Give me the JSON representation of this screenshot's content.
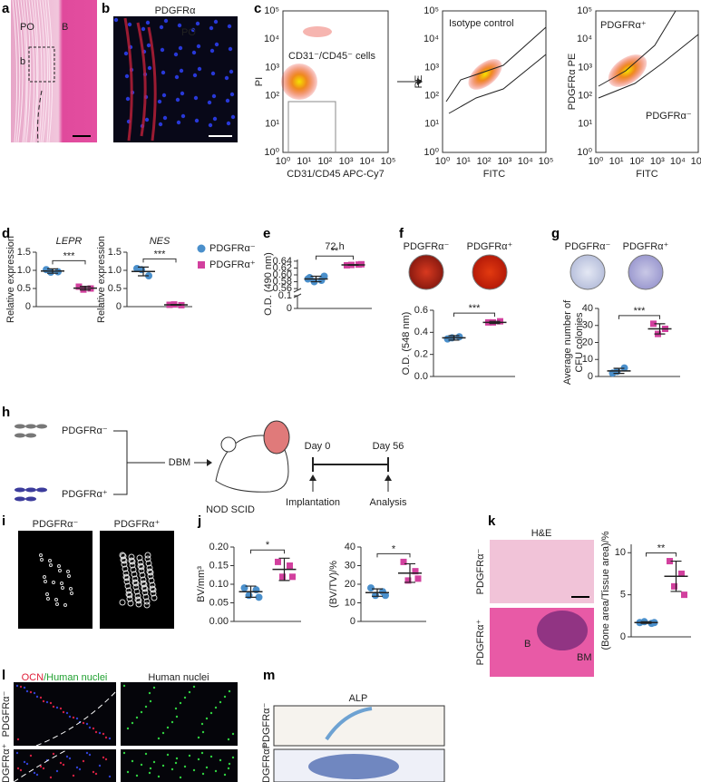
{
  "panel_letters": [
    "a",
    "b",
    "c",
    "d",
    "e",
    "f",
    "g",
    "h",
    "i",
    "j",
    "k",
    "l",
    "m"
  ],
  "groups": [
    "PDGFRα⁻",
    "PDGFRα⁺"
  ],
  "a": {
    "labels": [
      "PO",
      "B",
      "b"
    ]
  },
  "b": {
    "stain": "PDGFRα",
    "label": "PO"
  },
  "c": {
    "ticks": [
      "10⁰",
      "10¹",
      "10²",
      "10³",
      "10⁴",
      "10⁵"
    ],
    "plots": [
      {
        "ylabel": "PI",
        "xlabel": "CD31/CD45 APC-Cy7",
        "gate_labels": [
          "CD31⁻/CD45⁻ cells"
        ]
      },
      {
        "ylabel": "PE",
        "xlabel": "FITC",
        "gate_labels": [
          "Isotype control"
        ]
      },
      {
        "ylabel": "PDGFRα PE",
        "xlabel": "FITC",
        "gate_labels": [
          "PDGFRα⁺",
          "PDGFRα⁻"
        ]
      }
    ]
  },
  "h": {
    "steps": [
      "DBM",
      "NOD SCID",
      "Day 0",
      "Day 56",
      "Implantation",
      "Analysis"
    ]
  },
  "k": {
    "stain": "H&E",
    "labels": [
      "B",
      "BM"
    ]
  },
  "l": {
    "titles": [
      "OCN",
      "/Human nuclei",
      "Human nuclei"
    ]
  },
  "m": {
    "stain": "ALP"
  },
  "chart_data": [
    {
      "type": "dot",
      "title": "LEPR",
      "ylabel": "Relative expression",
      "ylim": [
        0,
        1.5
      ],
      "yticks": [
        0,
        0.5,
        {
          "value": 1,
          "label": "1.0"
        },
        1.5
      ],
      "annotation": "***",
      "series": [
        {
          "color": "#4a8fcb",
          "marker": "circle",
          "values": [
            1.02,
            0.96,
            0.95
          ],
          "mean": 0.98,
          "sd": 0.06
        },
        {
          "color": "#d2409e",
          "marker": "square",
          "values": [
            0.55,
            0.5,
            0.47
          ],
          "mean": 0.51,
          "sd": 0.05
        }
      ]
    },
    {
      "type": "dot",
      "title": "NES",
      "ylabel": "Relative expression",
      "ylim": [
        0,
        1.5
      ],
      "yticks": [
        0,
        0.5,
        {
          "value": 1,
          "label": "1.0"
        },
        1.5
      ],
      "annotation": "***",
      "legend": "right",
      "series": [
        {
          "name": "PDGFRα⁻",
          "color": "#4a8fcb",
          "marker": "circle",
          "values": [
            1.05,
            0.85,
            1.02
          ],
          "mean": 0.97,
          "sd": 0.12
        },
        {
          "name": "PDGFRα⁺",
          "color": "#d2409e",
          "marker": "square",
          "values": [
            0.05,
            0.04,
            0.06
          ],
          "mean": 0.05,
          "sd": 0.01
        }
      ]
    },
    {
      "type": "dot",
      "title": "72 h",
      "ylabel": "O.D. (490 nm)",
      "ylim": [
        0.555,
        0.645
      ],
      "yticks": [
        0.56,
        0.58,
        {
          "value": 0.6,
          "label": "0.60"
        },
        0.62,
        0.64
      ],
      "lower_ylim": [
        0,
        0.1
      ],
      "lower_yticks": [
        0,
        0.1
      ],
      "annotation": "**",
      "series": [
        {
          "color": "#4a8fcb",
          "marker": "circle",
          "values": [
            0.592,
            0.584,
            0.58,
            0.596,
            0.588
          ],
          "mean": 0.588,
          "sd": 0.008
        },
        {
          "color": "#d2409e",
          "marker": "square",
          "values": [
            0.628,
            0.63,
            0.629,
            0.631
          ],
          "mean": 0.629,
          "sd": 0.001
        }
      ]
    },
    {
      "type": "dot",
      "ylabel": "O.D. (548 nm)",
      "ylim": [
        0,
        0.6
      ],
      "yticks": [
        {
          "value": 0,
          "label": "0.0"
        },
        0.2,
        0.4,
        0.6
      ],
      "annotation": "***",
      "series": [
        {
          "color": "#4a8fcb",
          "marker": "circle",
          "values": [
            0.34,
            0.36,
            0.35
          ],
          "mean": 0.35,
          "sd": 0.02
        },
        {
          "color": "#d2409e",
          "marker": "square",
          "values": [
            0.49,
            0.5,
            0.49
          ],
          "mean": 0.49,
          "sd": 0.01
        }
      ]
    },
    {
      "type": "dot",
      "ylabel": [
        "Average number of",
        "CFU colonies"
      ],
      "ylim": [
        0,
        40
      ],
      "yticks": [
        0,
        10,
        20,
        30,
        40
      ],
      "annotation": "***",
      "series": [
        {
          "color": "#4a8fcb",
          "marker": "circle",
          "values": [
            2,
            5,
            3
          ],
          "mean": 3.3,
          "sd": 1.5
        },
        {
          "color": "#d2409e",
          "marker": "square",
          "values": [
            31,
            28,
            25
          ],
          "mean": 28,
          "sd": 3
        }
      ]
    },
    {
      "type": "dot",
      "ylabel": "BV/mm³",
      "ylim": [
        0,
        0.2
      ],
      "yticks": [
        {
          "value": 0,
          "label": "0.00"
        },
        0.05,
        {
          "value": 0.1,
          "label": "0.10"
        },
        0.15,
        {
          "value": 0.2,
          "label": "0.20"
        }
      ],
      "annotation": "*",
      "series": [
        {
          "color": "#4a8fcb",
          "marker": "circle",
          "values": [
            0.09,
            0.085,
            0.07,
            0.065
          ],
          "mean": 0.08,
          "sd": 0.015
        },
        {
          "color": "#d2409e",
          "marker": "square",
          "values": [
            0.16,
            0.15,
            0.12,
            0.12
          ],
          "mean": 0.14,
          "sd": 0.03
        }
      ]
    },
    {
      "type": "dot",
      "ylabel": "(BV/TV)/%",
      "ylim": [
        0,
        40
      ],
      "yticks": [
        0,
        10,
        20,
        30,
        40
      ],
      "annotation": "*",
      "series": [
        {
          "color": "#4a8fcb",
          "marker": "circle",
          "values": [
            18,
            16,
            14,
            14
          ],
          "mean": 15.5,
          "sd": 2
        },
        {
          "color": "#d2409e",
          "marker": "square",
          "values": [
            32,
            27,
            22,
            23
          ],
          "mean": 26,
          "sd": 5
        }
      ]
    },
    {
      "type": "dot",
      "ylabel": "(Bone area/Tissue area)/%",
      "ylim": [
        0,
        11
      ],
      "yticks": [
        0,
        5,
        10
      ],
      "annotation": "**",
      "series": [
        {
          "color": "#4a8fcb",
          "marker": "circle",
          "values": [
            1.7,
            1.6,
            1.8,
            1.7
          ],
          "mean": 1.7,
          "sd": 0.1
        },
        {
          "color": "#d2409e",
          "marker": "square",
          "values": [
            9,
            7.5,
            6,
            5
          ],
          "mean": 7.2,
          "sd": 1.8
        }
      ]
    }
  ]
}
